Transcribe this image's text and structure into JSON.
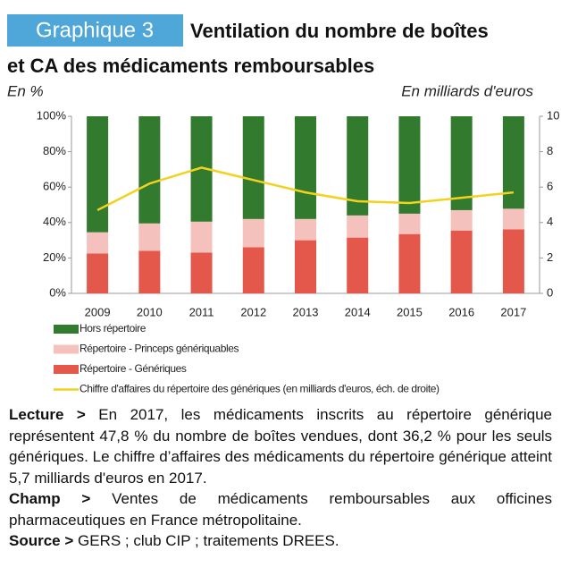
{
  "chart_data": {
    "type": "bar",
    "badge": "Graphique 3",
    "title": [
      "Ventilation du nombre de boîtes",
      "et CA des médicaments remboursables"
    ],
    "ylabel": "En %",
    "y2label": "En milliards d'euros",
    "categories": [
      "2009",
      "2010",
      "2011",
      "2012",
      "2013",
      "2014",
      "2015",
      "2016",
      "2017"
    ],
    "series": [
      {
        "name": "Hors répertoire",
        "type": "bar",
        "color": "#327a2e",
        "values": [
          65.5,
          60.5,
          59.5,
          58,
          58,
          56,
          55,
          53,
          52.2
        ]
      },
      {
        "name": "Répertoire - Princeps génériquables",
        "type": "bar",
        "color": "#f4c1bd",
        "values": [
          12,
          15.5,
          17.5,
          16,
          12,
          12.5,
          11.5,
          11.5,
          11.6
        ]
      },
      {
        "name": "Répertoire - Génériques",
        "type": "bar",
        "color": "#e4584b",
        "values": [
          22.5,
          24,
          23,
          26,
          30,
          31.5,
          33.5,
          35.5,
          36.2
        ]
      },
      {
        "name": "Chiffre d'affaires du répertoire des génériques (en milliards d'euros, éch. de droite)",
        "type": "line",
        "axis": "y2",
        "color": "#f2d21e",
        "values": [
          4.7,
          6.2,
          7.1,
          6.4,
          5.7,
          5.2,
          5.1,
          5.4,
          5.7
        ]
      }
    ],
    "ylim": [
      0,
      100
    ],
    "yticks": [
      {
        "value": 0,
        "label": "0%"
      },
      {
        "value": 20,
        "label": "20%"
      },
      {
        "value": 40,
        "label": "40%"
      },
      {
        "value": 60,
        "label": "60%"
      },
      {
        "value": 80,
        "label": "80%"
      },
      {
        "value": 100,
        "label": "100%"
      }
    ],
    "y2lim": [
      0,
      10
    ],
    "y2ticks": [
      0,
      2,
      4,
      6,
      8,
      10
    ],
    "notes": [
      {
        "lead": "Lecture >",
        "text": " En 2017, les médicaments inscrits au répertoire générique représentent 47,8 % du nombre de boîtes vendues, dont 36,2 % pour les seuls génériques. Le chiffre d’affaires des médicaments du répertoire générique atteint 5,7 milliards d'euros en 2017."
      },
      {
        "lead": "Champ >",
        "text": " Ventes de médicaments remboursables aux officines pharmaceutiques en France métropolitaine."
      },
      {
        "lead": "Source >",
        "text": " GERS ; club CIP ; traitements DREES."
      }
    ]
  }
}
